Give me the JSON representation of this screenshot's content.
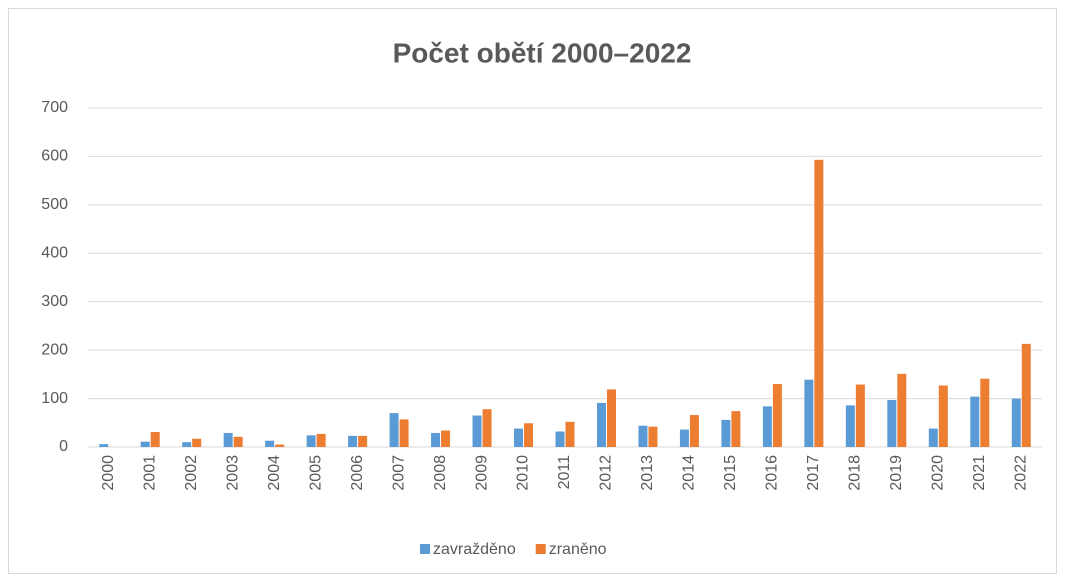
{
  "chart_data": {
    "type": "bar",
    "title": "Počet obětí 2000–2022",
    "categories": [
      "2000",
      "2001",
      "2002",
      "2003",
      "2004",
      "2005",
      "2006",
      "2007",
      "2008",
      "2009",
      "2010",
      "2011",
      "2012",
      "2013",
      "2014",
      "2015",
      "2016",
      "2017",
      "2018",
      "2019",
      "2020",
      "2021",
      "2022"
    ],
    "series": [
      {
        "name": "zavražděno",
        "color": "#5b9bd5",
        "values": [
          6,
          11,
          10,
          29,
          13,
          24,
          23,
          70,
          29,
          65,
          38,
          32,
          91,
          44,
          36,
          56,
          84,
          139,
          86,
          97,
          38,
          104,
          100
        ]
      },
      {
        "name": "zraněno",
        "color": "#ed7d31",
        "values": [
          0,
          31,
          17,
          21,
          5,
          27,
          23,
          57,
          34,
          78,
          49,
          52,
          119,
          42,
          66,
          74,
          130,
          593,
          129,
          151,
          127,
          141,
          213
        ]
      }
    ],
    "ylim": [
      0,
      700
    ],
    "yticks": [
      0,
      100,
      200,
      300,
      400,
      500,
      600,
      700
    ],
    "grid": true,
    "legend": "bottom"
  }
}
